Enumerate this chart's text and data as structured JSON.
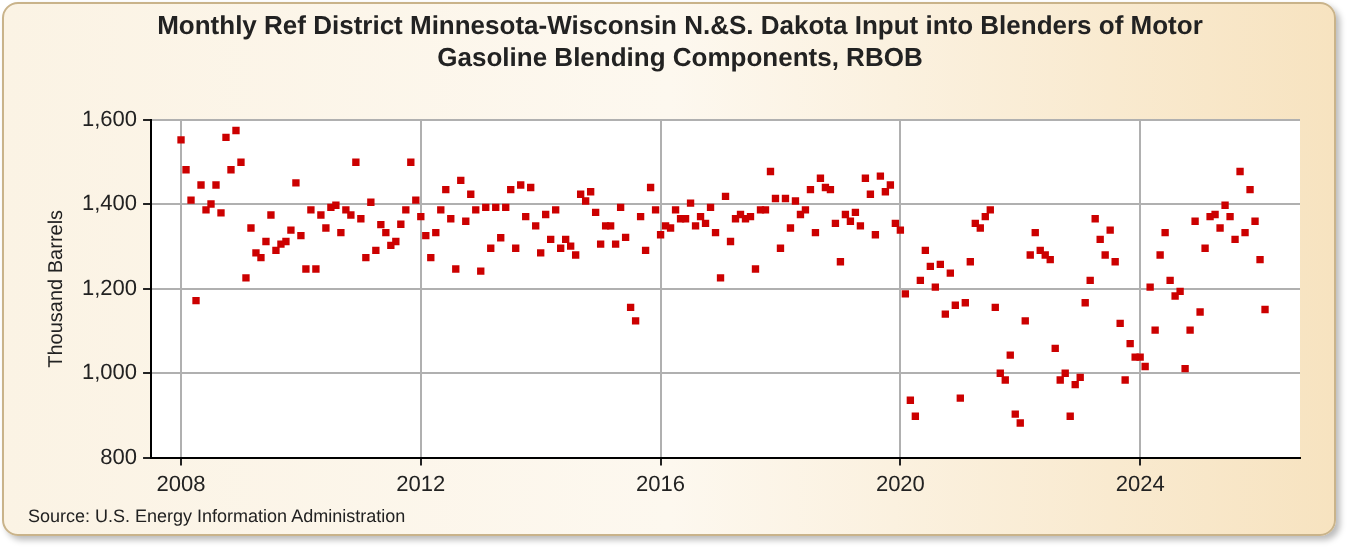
{
  "chart_data": {
    "type": "scatter",
    "title": "Monthly Ref District Minnesota-Wisconsin N.&S. Dakota Input into Blenders of Motor Gasoline Blending Components, RBOB",
    "ylabel": "Thousand Barrels",
    "annotations": [
      "Source: U.S. Energy Information Administration"
    ],
    "xlim": [
      "2007-07",
      "2026-09"
    ],
    "xticks": [
      "2008",
      "2012",
      "2016",
      "2020",
      "2024"
    ],
    "ylim": [
      800,
      1600
    ],
    "yticks": [
      {
        "value": 800,
        "label": "800"
      },
      {
        "value": 1000,
        "label": "1,000"
      },
      {
        "value": 1200,
        "label": "1,200"
      },
      {
        "value": 1400,
        "label": "1,400"
      },
      {
        "value": 1600,
        "label": "1,600"
      }
    ],
    "grid": true,
    "legend": false,
    "marker": "square",
    "x": [
      "2008-01",
      "2008-02",
      "2008-03",
      "2008-04",
      "2008-05",
      "2008-06",
      "2008-07",
      "2008-08",
      "2008-09",
      "2008-10",
      "2008-11",
      "2008-12",
      "2009-01",
      "2009-02",
      "2009-03",
      "2009-04",
      "2009-05",
      "2009-06",
      "2009-07",
      "2009-08",
      "2009-09",
      "2009-10",
      "2009-11",
      "2009-12",
      "2010-01",
      "2010-02",
      "2010-03",
      "2010-04",
      "2010-05",
      "2010-06",
      "2010-07",
      "2010-08",
      "2010-09",
      "2010-10",
      "2010-11",
      "2010-12",
      "2011-01",
      "2011-02",
      "2011-03",
      "2011-04",
      "2011-05",
      "2011-06",
      "2011-07",
      "2011-08",
      "2011-09",
      "2011-10",
      "2011-11",
      "2011-12",
      "2012-01",
      "2012-02",
      "2012-03",
      "2012-04",
      "2012-05",
      "2012-06",
      "2012-07",
      "2012-08",
      "2012-09",
      "2012-10",
      "2012-11",
      "2012-12",
      "2013-01",
      "2013-02",
      "2013-03",
      "2013-04",
      "2013-05",
      "2013-06",
      "2013-07",
      "2013-08",
      "2013-09",
      "2013-10",
      "2013-11",
      "2013-12",
      "2014-01",
      "2014-02",
      "2014-03",
      "2014-04",
      "2014-05",
      "2014-06",
      "2014-07",
      "2014-08",
      "2014-09",
      "2014-10",
      "2014-11",
      "2014-12",
      "2015-01",
      "2015-02",
      "2015-03",
      "2015-04",
      "2015-05",
      "2015-06",
      "2015-07",
      "2015-08",
      "2015-09",
      "2015-10",
      "2015-11",
      "2015-12",
      "2016-01",
      "2016-02",
      "2016-03",
      "2016-04",
      "2016-05",
      "2016-06",
      "2016-07",
      "2016-08",
      "2016-09",
      "2016-10",
      "2016-11",
      "2016-12",
      "2017-01",
      "2017-02",
      "2017-03",
      "2017-04",
      "2017-05",
      "2017-06",
      "2017-07",
      "2017-08",
      "2017-09",
      "2017-10",
      "2017-11",
      "2017-12",
      "2018-01",
      "2018-02",
      "2018-03",
      "2018-04",
      "2018-05",
      "2018-06",
      "2018-07",
      "2018-08",
      "2018-09",
      "2018-10",
      "2018-11",
      "2018-12",
      "2019-01",
      "2019-02",
      "2019-03",
      "2019-04",
      "2019-05",
      "2019-06",
      "2019-07",
      "2019-08",
      "2019-09",
      "2019-10",
      "2019-11",
      "2019-12",
      "2020-01",
      "2020-02",
      "2020-03",
      "2020-04",
      "2020-05",
      "2020-06",
      "2020-07",
      "2020-08",
      "2020-09",
      "2020-10",
      "2020-11",
      "2020-12",
      "2021-01",
      "2021-02",
      "2021-03",
      "2021-04",
      "2021-05",
      "2021-06",
      "2021-07",
      "2021-08",
      "2021-09",
      "2021-10",
      "2021-11",
      "2021-12",
      "2022-01",
      "2022-02",
      "2022-03",
      "2022-04",
      "2022-05",
      "2022-06",
      "2022-07",
      "2022-08",
      "2022-09",
      "2022-10",
      "2022-11",
      "2022-12",
      "2023-01",
      "2023-02",
      "2023-03",
      "2023-04",
      "2023-05",
      "2023-06",
      "2023-07",
      "2023-08",
      "2023-09",
      "2023-10",
      "2023-11",
      "2023-12",
      "2024-01",
      "2024-02",
      "2024-03",
      "2024-04",
      "2024-05",
      "2024-06",
      "2024-07",
      "2024-08",
      "2024-09",
      "2024-10",
      "2024-11",
      "2024-12",
      "2025-01",
      "2025-02",
      "2025-03",
      "2025-04",
      "2025-05",
      "2025-06",
      "2025-07",
      "2025-08",
      "2025-09",
      "2025-10",
      "2025-11",
      "2025-12",
      "2026-01",
      "2026-02"
    ],
    "series": [
      {
        "color": "#cc0000",
        "values": [
          1553,
          1482,
          1410,
          1172,
          1446,
          1387,
          1401,
          1446,
          1380,
          1559,
          1482,
          1575,
          1500,
          1226,
          1344,
          1285,
          1274,
          1312,
          1375,
          1291,
          1306,
          1312,
          1339,
          1451,
          1326,
          1247,
          1387,
          1247,
          1375,
          1344,
          1393,
          1398,
          1333,
          1387,
          1375,
          1500,
          1366,
          1274,
          1405,
          1291,
          1352,
          1333,
          1303,
          1312,
          1353,
          1387,
          1500,
          1410,
          1371,
          1326,
          1274,
          1333,
          1387,
          1435,
          1366,
          1247,
          1457,
          1360,
          1424,
          1387,
          1242,
          1393,
          1296,
          1393,
          1321,
          1393,
          1435,
          1296,
          1446,
          1371,
          1440,
          1349,
          1285,
          1376,
          1317,
          1387,
          1296,
          1317,
          1301,
          1280,
          1424,
          1408,
          1430,
          1381,
          1306,
          1349,
          1349,
          1306,
          1393,
          1322,
          1156,
          1124,
          1371,
          1291,
          1440,
          1387,
          1328,
          1349,
          1344,
          1387,
          1366,
          1366,
          1403,
          1349,
          1371,
          1355,
          1393,
          1333,
          1226,
          1419,
          1312,
          1366,
          1376,
          1366,
          1371,
          1247,
          1387,
          1387,
          1478,
          1414,
          1296,
          1414,
          1344,
          1408,
          1376,
          1387,
          1435,
          1333,
          1462,
          1440,
          1435,
          1355,
          1264,
          1376,
          1360,
          1381,
          1349,
          1462,
          1424,
          1328,
          1467,
          1430,
          1446,
          1355,
          1339,
          1188,
          936,
          898,
          1220,
          1291,
          1253,
          1204,
          1258,
          1140,
          1237,
          1161,
          941,
          1167,
          1264,
          1355,
          1344,
          1371,
          1387,
          1156,
          1000,
          984,
          1043,
          903,
          882,
          1124,
          1280,
          1333,
          1291,
          1280,
          1269,
          1059,
          984,
          1000,
          898,
          973,
          990,
          1167,
          1220,
          1366,
          1317,
          1280,
          1339,
          1264,
          1118,
          984,
          1070,
          1038,
          1038,
          1016,
          1204,
          1102,
          1280,
          1333,
          1220,
          1183,
          1194,
          1011,
          1102,
          1360,
          1145,
          1296,
          1371,
          1376,
          1344,
          1398,
          1371,
          1317,
          1478,
          1333,
          1435,
          1360,
          1269,
          1151
        ]
      }
    ]
  }
}
